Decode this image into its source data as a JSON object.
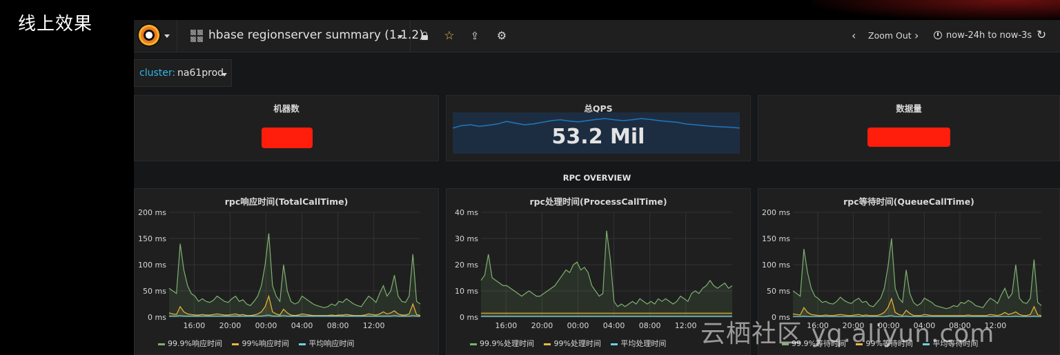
{
  "slide": {
    "caption": "线上效果",
    "watermark": "云栖社区 yq.aliyun.com"
  },
  "navbar": {
    "dashboard_title": "hbase regionserver summary (1.1.2)",
    "zoom_out_label": "Zoom Out",
    "time_range": "now-24h to now-3s",
    "icons": [
      "grafana-logo-icon",
      "dashboard-grid-icon",
      "lock-icon",
      "star-icon",
      "share-icon",
      "gear-icon",
      "chevron-left-icon",
      "chevron-right-icon",
      "clock-icon",
      "refresh-icon"
    ],
    "star_color": "#f2c744"
  },
  "template_var": {
    "name": "cluster:",
    "value": "na61prod",
    "name_color": "#33b5e5"
  },
  "stats": {
    "machines": {
      "title": "机器数",
      "redacted": true
    },
    "qps": {
      "title": "总QPS",
      "value": "53.2 Mil",
      "sparkline": [
        0.62,
        0.68,
        0.7,
        0.66,
        0.69,
        0.72,
        0.78,
        0.74,
        0.7,
        0.72,
        0.76,
        0.8,
        0.82,
        0.79,
        0.77,
        0.8,
        0.83,
        0.85,
        0.82,
        0.8,
        0.82,
        0.85,
        0.83,
        0.8,
        0.78,
        0.76,
        0.72,
        0.7,
        0.68,
        0.66,
        0.65,
        0.64,
        0.62
      ]
    },
    "data_volume": {
      "title": "数据量",
      "redacted": true
    }
  },
  "row_title": "RPC OVERVIEW",
  "colors": {
    "p999": "#7eb26d",
    "p99": "#eab839",
    "avg": "#6ed0e0",
    "sparkline_fill": "#1d2d41",
    "sparkline_line": "#1f78c1",
    "redaction": "#ff1d0b"
  },
  "chart_data": [
    {
      "type": "line",
      "title": "rpc响应时间(TotalCallTime)",
      "x_ticks": [
        "16:00",
        "20:00",
        "00:00",
        "04:00",
        "08:00",
        "12:00"
      ],
      "y_ticks": [
        "0 ms",
        "50 ms",
        "100 ms",
        "150 ms",
        "200 ms"
      ],
      "ylim": [
        0,
        200
      ],
      "series": [
        {
          "name": "99.9%响应时间",
          "values": [
            55,
            50,
            45,
            140,
            90,
            60,
            45,
            40,
            30,
            35,
            30,
            28,
            32,
            40,
            35,
            30,
            28,
            35,
            40,
            30,
            33,
            25,
            22,
            30,
            40,
            60,
            100,
            160,
            60,
            40,
            30,
            100,
            50,
            30,
            25,
            28,
            40,
            35,
            30,
            25,
            22,
            20,
            18,
            20,
            25,
            22,
            30,
            28,
            35,
            30,
            25,
            22,
            20,
            30,
            40,
            35,
            28,
            45,
            60,
            40,
            50,
            80,
            40,
            30,
            28,
            40,
            120,
            30,
            25
          ]
        },
        {
          "name": "99%响应时间",
          "values": [
            8,
            6,
            5,
            20,
            10,
            6,
            5,
            4,
            4,
            5,
            4,
            4,
            5,
            6,
            5,
            4,
            4,
            5,
            6,
            4,
            5,
            3,
            3,
            4,
            6,
            10,
            20,
            40,
            10,
            6,
            4,
            15,
            8,
            4,
            3,
            4,
            6,
            5,
            4,
            3,
            3,
            3,
            3,
            3,
            4,
            3,
            4,
            4,
            5,
            4,
            3,
            3,
            3,
            4,
            6,
            5,
            4,
            6,
            10,
            6,
            8,
            12,
            6,
            4,
            4,
            6,
            25,
            5,
            3
          ]
        },
        {
          "name": "平均响应时间",
          "values": [
            2,
            2,
            2,
            3,
            2,
            2,
            2,
            2,
            2,
            2,
            2,
            2,
            2,
            2,
            2,
            2,
            2,
            2,
            2,
            2,
            2,
            2,
            2,
            2,
            2,
            2,
            3,
            4,
            2,
            2,
            2,
            3,
            2,
            2,
            2,
            2,
            2,
            2,
            2,
            2,
            2,
            2,
            2,
            2,
            2,
            2,
            2,
            2,
            2,
            2,
            2,
            2,
            2,
            2,
            2,
            2,
            2,
            2,
            2,
            2,
            2,
            3,
            2,
            2,
            2,
            2,
            3,
            2,
            2
          ]
        }
      ]
    },
    {
      "type": "line",
      "title": "rpc处理时间(ProcessCallTime)",
      "x_ticks": [
        "16:00",
        "20:00",
        "00:00",
        "04:00",
        "08:00",
        "12:00"
      ],
      "y_ticks": [
        "0 ms",
        "10 ms",
        "20 ms",
        "30 ms",
        "40 ms"
      ],
      "ylim": [
        0,
        40
      ],
      "series": [
        {
          "name": "99.9%处理时间",
          "values": [
            14,
            16,
            24,
            15,
            14,
            13,
            12,
            12,
            11,
            10,
            9,
            8,
            9,
            10,
            9,
            8,
            8,
            9,
            10,
            11,
            12,
            14,
            16,
            18,
            17,
            20,
            21,
            18,
            19,
            17,
            12,
            10,
            8,
            9,
            33,
            22,
            6,
            4,
            5,
            4,
            5,
            6,
            5,
            7,
            6,
            5,
            6,
            5,
            7,
            6,
            7,
            6,
            5,
            6,
            8,
            7,
            6,
            9,
            10,
            9,
            11,
            12,
            14,
            12,
            11,
            12,
            13,
            11,
            12
          ]
        },
        {
          "name": "99%处理时间",
          "values": [
            1.5,
            1.5,
            1.5,
            1.5,
            1.5,
            1.5,
            1.5,
            1.5,
            1.5,
            1.5,
            1.5,
            1.5,
            1.5,
            1.5,
            1.5,
            1.5,
            1.5,
            1.5,
            1.5,
            1.5,
            1.5,
            1.5,
            1.5,
            1.5,
            1.5,
            1.5,
            1.5,
            1.5,
            1.5,
            1.5,
            1.5,
            1.5,
            1.5,
            1.5,
            1.5,
            1.5,
            1.5,
            1.5,
            1.5,
            1.5,
            1.5,
            1.5,
            1.5,
            1.5,
            1.5,
            1.5,
            1.5,
            1.5,
            1.5,
            1.5,
            1.5,
            1.5,
            1.5,
            1.5,
            1.5,
            1.5,
            1.5,
            1.5,
            1.5,
            1.5,
            1.5,
            1.5,
            1.5,
            1.5,
            1.5,
            1.5,
            1.5,
            1.5,
            1.5
          ]
        },
        {
          "name": "平均处理时间",
          "values": [
            0.3,
            0.3,
            0.3,
            0.3,
            0.3,
            0.3,
            0.3,
            0.3,
            0.3,
            0.3,
            0.3,
            0.3,
            0.3,
            0.3,
            0.3,
            0.3,
            0.3,
            0.3,
            0.3,
            0.3,
            0.3,
            0.3,
            0.3,
            0.3,
            0.3,
            0.3,
            0.3,
            0.3,
            0.3,
            0.3,
            0.3,
            0.3,
            0.3,
            0.3,
            0.3,
            0.3,
            0.3,
            0.3,
            0.3,
            0.3,
            0.3,
            0.3,
            0.3,
            0.3,
            0.3,
            0.3,
            0.3,
            0.3,
            0.3,
            0.3,
            0.3,
            0.3,
            0.3,
            0.3,
            0.3,
            0.3,
            0.3,
            0.3,
            0.3,
            0.3,
            0.3,
            0.3,
            0.3,
            0.3,
            0.3,
            0.3,
            0.3,
            0.3,
            0.3
          ]
        }
      ]
    },
    {
      "type": "line",
      "title": "rpc等待时间(QueueCallTime)",
      "x_ticks": [
        "16:00",
        "20:00",
        "00:00",
        "04:00",
        "08:00",
        "12:00"
      ],
      "y_ticks": [
        "0 ms",
        "50 ms",
        "100 ms",
        "150 ms",
        "200 ms"
      ],
      "ylim": [
        0,
        200
      ],
      "series": [
        {
          "name": "99.9%等待时间",
          "values": [
            50,
            45,
            40,
            130,
            85,
            55,
            40,
            35,
            28,
            30,
            26,
            25,
            30,
            38,
            32,
            28,
            26,
            32,
            36,
            28,
            30,
            22,
            20,
            28,
            36,
            55,
            95,
            150,
            55,
            36,
            28,
            90,
            45,
            28,
            22,
            26,
            36,
            32,
            28,
            22,
            20,
            18,
            16,
            18,
            22,
            20,
            28,
            26,
            32,
            28,
            22,
            20,
            18,
            28,
            36,
            32,
            26,
            42,
            55,
            36,
            45,
            100,
            36,
            28,
            26,
            36,
            110,
            28,
            22
          ]
        },
        {
          "name": "99%等待时间",
          "values": [
            6,
            5,
            4,
            18,
            9,
            5,
            4,
            3,
            3,
            4,
            3,
            3,
            4,
            5,
            4,
            3,
            3,
            4,
            5,
            3,
            4,
            3,
            3,
            3,
            5,
            9,
            18,
            35,
            9,
            5,
            3,
            13,
            7,
            3,
            3,
            3,
            5,
            4,
            3,
            3,
            3,
            3,
            3,
            3,
            3,
            3,
            3,
            3,
            4,
            3,
            3,
            3,
            3,
            3,
            5,
            4,
            3,
            5,
            9,
            5,
            7,
            10,
            5,
            3,
            3,
            5,
            20,
            4,
            3
          ]
        },
        {
          "name": "平均等待时间",
          "values": [
            1,
            1,
            1,
            2,
            1,
            1,
            1,
            1,
            1,
            1,
            1,
            1,
            1,
            1,
            1,
            1,
            1,
            1,
            1,
            1,
            1,
            1,
            1,
            1,
            1,
            1,
            2,
            3,
            1,
            1,
            1,
            2,
            1,
            1,
            1,
            1,
            1,
            1,
            1,
            1,
            1,
            1,
            1,
            1,
            1,
            1,
            1,
            1,
            1,
            1,
            1,
            1,
            1,
            1,
            1,
            1,
            1,
            1,
            1,
            1,
            1,
            2,
            1,
            1,
            1,
            1,
            2,
            1,
            1
          ]
        }
      ]
    }
  ]
}
